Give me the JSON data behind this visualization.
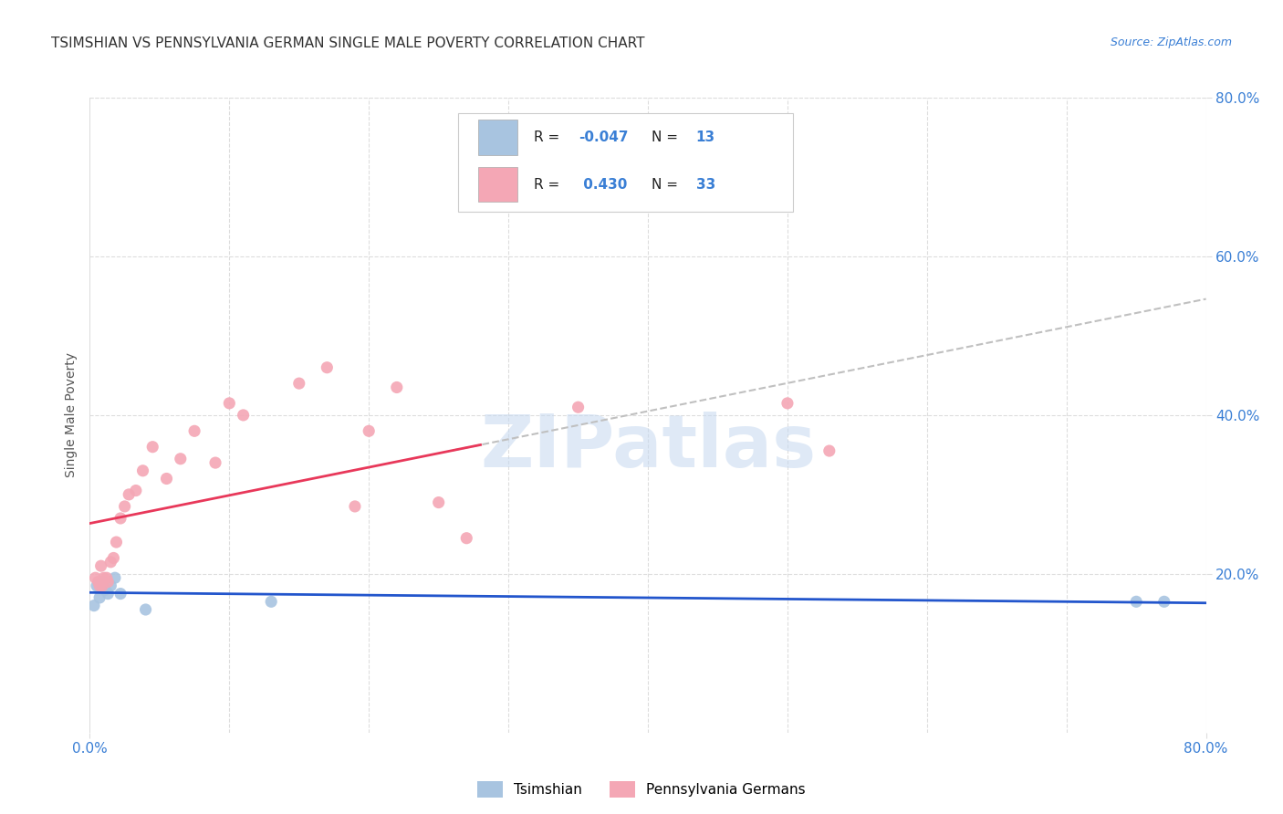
{
  "title": "TSIMSHIAN VS PENNSYLVANIA GERMAN SINGLE MALE POVERTY CORRELATION CHART",
  "source": "Source: ZipAtlas.com",
  "ylabel": "Single Male Poverty",
  "xlim": [
    0.0,
    0.8
  ],
  "ylim": [
    0.0,
    0.8
  ],
  "yticks": [
    0.2,
    0.4,
    0.6,
    0.8
  ],
  "ytick_labels": [
    "20.0%",
    "40.0%",
    "60.0%",
    "80.0%"
  ],
  "watermark": "ZIPatlas",
  "tsimshian_color": "#a8c4e0",
  "pa_german_color": "#f4a7b5",
  "tsimshian_line_color": "#2255cc",
  "pa_german_line_color": "#e8385a",
  "trendline_color": "#c0c0c0",
  "tsimshian_R": -0.047,
  "tsimshian_N": 13,
  "pa_german_R": 0.43,
  "pa_german_N": 33,
  "tsimshian_x": [
    0.003,
    0.005,
    0.007,
    0.009,
    0.011,
    0.013,
    0.015,
    0.018,
    0.022,
    0.04,
    0.13,
    0.75,
    0.77
  ],
  "tsimshian_y": [
    0.16,
    0.185,
    0.17,
    0.19,
    0.18,
    0.175,
    0.185,
    0.195,
    0.175,
    0.155,
    0.165,
    0.165,
    0.165
  ],
  "pa_german_x": [
    0.004,
    0.006,
    0.007,
    0.008,
    0.009,
    0.01,
    0.012,
    0.013,
    0.015,
    0.017,
    0.019,
    0.022,
    0.025,
    0.028,
    0.033,
    0.038,
    0.045,
    0.055,
    0.065,
    0.075,
    0.09,
    0.11,
    0.15,
    0.19,
    0.22,
    0.27,
    0.35,
    0.1,
    0.17,
    0.2,
    0.25,
    0.5,
    0.53
  ],
  "pa_german_y": [
    0.195,
    0.19,
    0.185,
    0.21,
    0.185,
    0.195,
    0.195,
    0.19,
    0.215,
    0.22,
    0.24,
    0.27,
    0.285,
    0.3,
    0.305,
    0.33,
    0.36,
    0.32,
    0.345,
    0.38,
    0.34,
    0.4,
    0.44,
    0.285,
    0.435,
    0.245,
    0.41,
    0.415,
    0.46,
    0.38,
    0.29,
    0.415,
    0.355
  ],
  "background_color": "#ffffff",
  "grid_color": "#dddddd",
  "title_color": "#333333",
  "axis_label_color": "#555555",
  "tick_label_color": "#3a7fd5",
  "title_fontsize": 11,
  "source_fontsize": 9,
  "marker_size": 90,
  "legend_label_tsimshian": "Tsimshian",
  "legend_label_pa_german": "Pennsylvania Germans"
}
